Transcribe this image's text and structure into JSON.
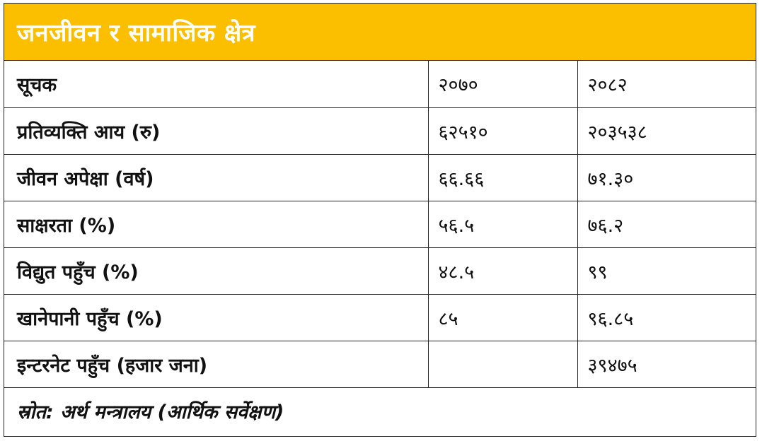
{
  "title": "जनजीवन र सामाजिक क्षेत्र",
  "colors": {
    "header_background": "#fbbf00",
    "header_text": "#ffffff",
    "border": "#222222"
  },
  "table": {
    "header": {
      "label": "सूचक",
      "col1": "२०७०",
      "col2": "२०८२"
    },
    "rows": [
      {
        "label": "प्रतिव्यक्ति आय (रु)",
        "v2070": "६२५१०",
        "v2082": "२०३५३८"
      },
      {
        "label": "जीवन अपेक्षा (वर्ष)",
        "v2070": "६६.६६",
        "v2082": "७१.३०"
      },
      {
        "label": "साक्षरता (%)",
        "v2070": "५६.५",
        "v2082": "७६.२"
      },
      {
        "label": "विद्युत पहुँच (%)",
        "v2070": "४८.५",
        "v2082": "९९"
      },
      {
        "label": "खानेपानी पहुँच (%)",
        "v2070": "८५",
        "v2082": "९६.८५"
      },
      {
        "label": "इन्टरनेट पहुँच (हजार जना)",
        "v2070": "",
        "v2082": "३९४७५"
      }
    ]
  },
  "source": "स्रोत: अर्थ मन्त्रालय (आर्थिक सर्वेक्षण)"
}
